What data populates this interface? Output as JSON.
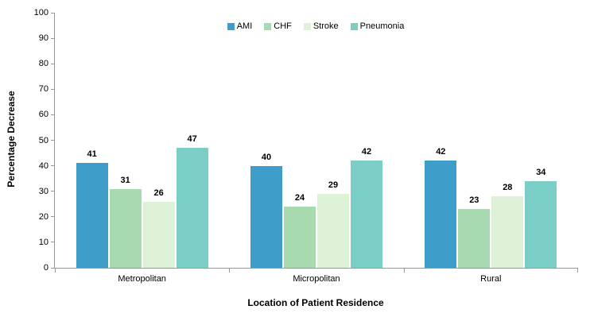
{
  "chart_data": {
    "type": "bar",
    "title": "",
    "xlabel": "Location of Patient Residence",
    "ylabel": "Percentage Decrease",
    "categories": [
      "Metropolitan",
      "Micropolitan",
      "Rural"
    ],
    "series": [
      {
        "name": "AMI",
        "color": "#3F9EC9",
        "values": [
          41,
          40,
          42
        ]
      },
      {
        "name": "CHF",
        "color": "#A7DAAE",
        "values": [
          31,
          24,
          23
        ]
      },
      {
        "name": "Stroke",
        "color": "#DEF2D8",
        "values": [
          26,
          29,
          28
        ]
      },
      {
        "name": "Pneumonia",
        "color": "#7BCEC5",
        "values": [
          47,
          42,
          34
        ]
      }
    ],
    "ylim": [
      0,
      100
    ],
    "yticks": [
      0,
      10,
      20,
      30,
      40,
      50,
      60,
      70,
      80,
      90,
      100
    ],
    "grid": false,
    "show_value_labels": true,
    "legend_position": "top-center",
    "axis_color": "#989898",
    "text_color": "#000000"
  }
}
